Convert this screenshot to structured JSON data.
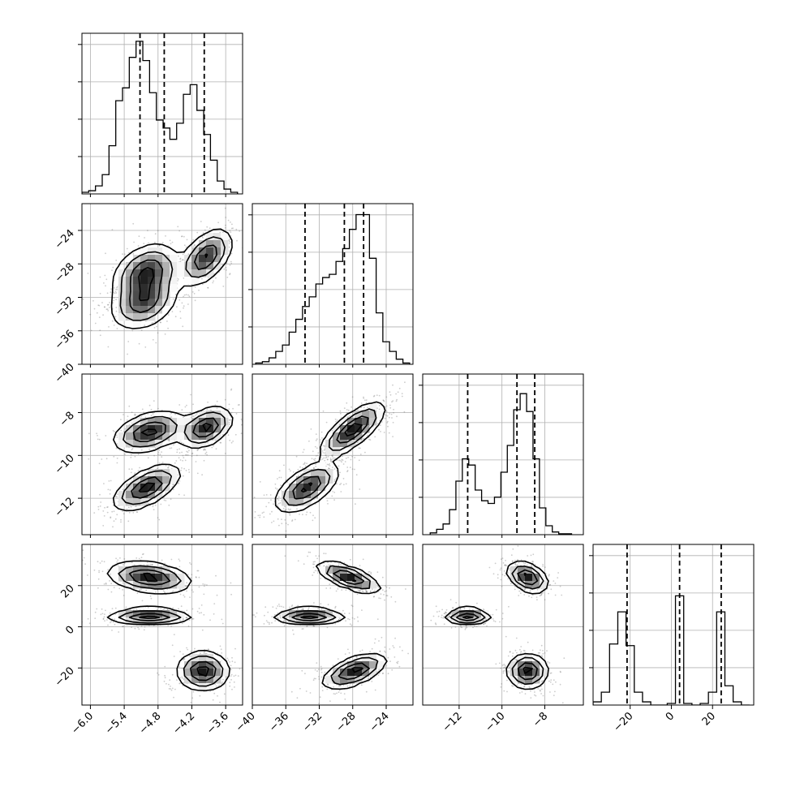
{
  "chart_data": {
    "type": "corner",
    "title": "",
    "n_params": 4,
    "params": [
      {
        "label": "",
        "range": [
          -6.15,
          -3.3
        ]
      },
      {
        "label": "",
        "range": [
          -40,
          -20.8
        ]
      },
      {
        "label": "",
        "range": [
          -13.7,
          -6.2
        ]
      },
      {
        "label": "",
        "range": [
          -38,
          40
        ]
      }
    ],
    "tick_labels": [
      [
        "−6.0",
        "−5.4",
        "−4.8",
        "−4.2",
        "−3.6"
      ],
      [
        "−40",
        "−36",
        "−32",
        "−28",
        "−24"
      ],
      [
        "−12",
        "−10",
        "−8"
      ],
      [
        "−20",
        "0",
        "20"
      ]
    ],
    "tick_values": [
      [
        -6.0,
        -5.4,
        -4.8,
        -4.2,
        -3.6
      ],
      [
        -40,
        -36,
        -32,
        -28,
        -24
      ],
      [
        -12,
        -10,
        -8
      ],
      [
        -20,
        0,
        20
      ]
    ],
    "grid": true,
    "diagonal_histograms": [
      {
        "bins": [
          -6.15,
          -6.03,
          -5.91,
          -5.79,
          -5.67,
          -5.55,
          -5.43,
          -5.31,
          -5.19,
          -5.07,
          -4.95,
          -4.83,
          -4.71,
          -4.59,
          -4.47,
          -4.35,
          -4.23,
          -4.11,
          -3.99,
          -3.87,
          -3.75,
          -3.63,
          -3.51,
          -3.39
        ],
        "counts": [
          1,
          2,
          5,
          12,
          30,
          58,
          66,
          85,
          95,
          83,
          63,
          46,
          41,
          34,
          44,
          62,
          68,
          52,
          37,
          21,
          8,
          3,
          1
        ],
        "quantiles": [
          -5.12,
          -4.69,
          -3.98
        ],
        "ylim": [
          0,
          100
        ]
      },
      {
        "bins": [
          -39.6,
          -38.8,
          -38.0,
          -37.2,
          -36.4,
          -35.6,
          -34.8,
          -34.0,
          -33.2,
          -32.4,
          -31.6,
          -30.8,
          -30.0,
          -29.2,
          -28.4,
          -27.6,
          -26.8,
          -26.0,
          -25.2,
          -24.4,
          -23.6,
          -22.8,
          -22.0,
          -21.2
        ],
        "counts": [
          2,
          4,
          10,
          20,
          30,
          50,
          70,
          90,
          105,
          125,
          135,
          140,
          160,
          180,
          210,
          233,
          233,
          165,
          80,
          35,
          20,
          8,
          2
        ],
        "quantiles": [
          -33.7,
          -29.0,
          -26.7
        ],
        "ylim": [
          0,
          250
        ]
      },
      {
        "bins": [
          -13.35,
          -13.05,
          -12.75,
          -12.45,
          -12.15,
          -11.85,
          -11.55,
          -11.25,
          -10.95,
          -10.65,
          -10.35,
          -10.05,
          -9.75,
          -9.45,
          -9.15,
          -8.85,
          -8.55,
          -8.25,
          -7.95,
          -7.65,
          -7.35,
          -7.05,
          -6.75
        ],
        "counts": [
          2,
          6,
          12,
          28,
          60,
          85,
          78,
          50,
          38,
          35,
          42,
          70,
          100,
          140,
          158,
          138,
          85,
          30,
          10,
          3,
          1,
          1
        ],
        "quantiles": [
          -11.6,
          -9.3,
          -8.47
        ],
        "ylim": [
          0,
          180
        ]
      },
      {
        "bins": [
          -38,
          -34,
          -30,
          -26,
          -22,
          -18,
          -14,
          -10,
          -6,
          -2,
          2,
          6,
          10,
          14,
          18,
          22,
          26,
          30,
          34,
          38
        ],
        "counts": [
          2,
          8,
          38,
          58,
          37,
          8,
          2,
          0,
          0,
          1,
          68,
          1,
          0,
          1,
          8,
          58,
          12,
          2,
          0
        ],
        "quantiles": [
          -21.5,
          4.0,
          24.2
        ],
        "ylim": [
          0,
          100
        ]
      }
    ],
    "pairwise_modes": {
      "1_0": [
        {
          "cx": -5.0,
          "cy": -29.0,
          "sx": 0.28,
          "sy": 1.6,
          "rho": 0.3,
          "w": 1.0
        },
        {
          "cx": -5.05,
          "cy": -32.5,
          "sx": 0.28,
          "sy": 1.6,
          "rho": 0.3,
          "w": 0.9
        },
        {
          "cx": -3.95,
          "cy": -27.2,
          "sx": 0.22,
          "sy": 1.6,
          "rho": 0.5,
          "w": 1.0
        }
      ],
      "2_0": [
        {
          "cx": -4.95,
          "cy": -8.9,
          "sx": 0.3,
          "sy": 0.45,
          "rho": 0.4,
          "w": 1.0
        },
        {
          "cx": -3.95,
          "cy": -8.7,
          "sx": 0.22,
          "sy": 0.45,
          "rho": 0.4,
          "w": 1.0
        },
        {
          "cx": -5.0,
          "cy": -11.5,
          "sx": 0.28,
          "sy": 0.5,
          "rho": 0.6,
          "w": 1.0
        }
      ],
      "2_1": [
        {
          "cx": -28.0,
          "cy": -8.8,
          "sx": 1.8,
          "sy": 0.6,
          "rho": 0.75,
          "w": 1.0
        },
        {
          "cx": -33.5,
          "cy": -11.5,
          "sx": 1.8,
          "sy": 0.55,
          "rho": 0.6,
          "w": 0.9
        }
      ],
      "3_0": [
        {
          "cx": -4.95,
          "cy": 24.0,
          "sx": 0.35,
          "sy": 3.5,
          "rho": -0.3,
          "w": 1.0
        },
        {
          "cx": -4.95,
          "cy": 5.0,
          "sx": 0.35,
          "sy": 1.8,
          "rho": 0.0,
          "w": 1.0
        },
        {
          "cx": -4.0,
          "cy": -21.5,
          "sx": 0.22,
          "sy": 4.5,
          "rho": 0.0,
          "w": 1.0
        }
      ],
      "3_1": [
        {
          "cx": -28.5,
          "cy": 24.0,
          "sx": 1.8,
          "sy": 3.5,
          "rho": -0.7,
          "w": 1.0
        },
        {
          "cx": -33.2,
          "cy": 5.0,
          "sx": 2.0,
          "sy": 1.8,
          "rho": 0.0,
          "w": 1.0
        },
        {
          "cx": -27.8,
          "cy": -21.5,
          "sx": 1.8,
          "sy": 4.0,
          "rho": 0.6,
          "w": 1.0
        }
      ],
      "3_2": [
        {
          "cx": -8.8,
          "cy": 24.0,
          "sx": 0.45,
          "sy": 3.5,
          "rho": -0.4,
          "w": 1.0
        },
        {
          "cx": -11.6,
          "cy": 5.0,
          "sx": 0.5,
          "sy": 1.8,
          "rho": 0.0,
          "w": 1.0
        },
        {
          "cx": -8.8,
          "cy": -21.5,
          "sx": 0.45,
          "sy": 4.0,
          "rho": 0.0,
          "w": 1.0
        }
      ]
    },
    "contour_levels": [
      0.88,
      0.6,
      0.3,
      0.11
    ]
  }
}
